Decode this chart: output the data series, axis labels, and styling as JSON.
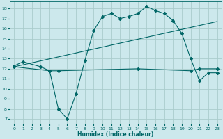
{
  "bg_color": "#cce8ec",
  "grid_color": "#aacccc",
  "line_color": "#006666",
  "xlabel": "Humidex (Indice chaleur)",
  "xlim": [
    -0.5,
    23.5
  ],
  "ylim": [
    6.5,
    18.7
  ],
  "xticks": [
    0,
    1,
    2,
    3,
    4,
    5,
    6,
    7,
    8,
    9,
    10,
    11,
    12,
    13,
    14,
    15,
    16,
    17,
    18,
    19,
    20,
    21,
    22,
    23
  ],
  "yticks": [
    7,
    8,
    9,
    10,
    11,
    12,
    13,
    14,
    15,
    16,
    17,
    18
  ],
  "line1_x": [
    0,
    1,
    3,
    4,
    5,
    6,
    7,
    8,
    9,
    10,
    11,
    12,
    13,
    14,
    15,
    16,
    17,
    18,
    19,
    20,
    21,
    22,
    23
  ],
  "line1_y": [
    12.3,
    12.7,
    12.2,
    11.8,
    8.0,
    7.0,
    9.5,
    12.8,
    15.8,
    17.2,
    17.5,
    17.0,
    17.2,
    17.5,
    18.2,
    17.8,
    17.5,
    16.8,
    15.5,
    13.0,
    10.8,
    11.6,
    11.6
  ],
  "line2_x": [
    0,
    23
  ],
  "line2_y": [
    12.2,
    16.7
  ],
  "line3_x": [
    0,
    4,
    5,
    14,
    20,
    21,
    23
  ],
  "line3_y": [
    12.2,
    11.8,
    11.8,
    12.0,
    11.8,
    12.0,
    12.0
  ],
  "marker": "D",
  "markersize": 2,
  "tick_fontsize": 4.5,
  "xlabel_fontsize": 5.5
}
